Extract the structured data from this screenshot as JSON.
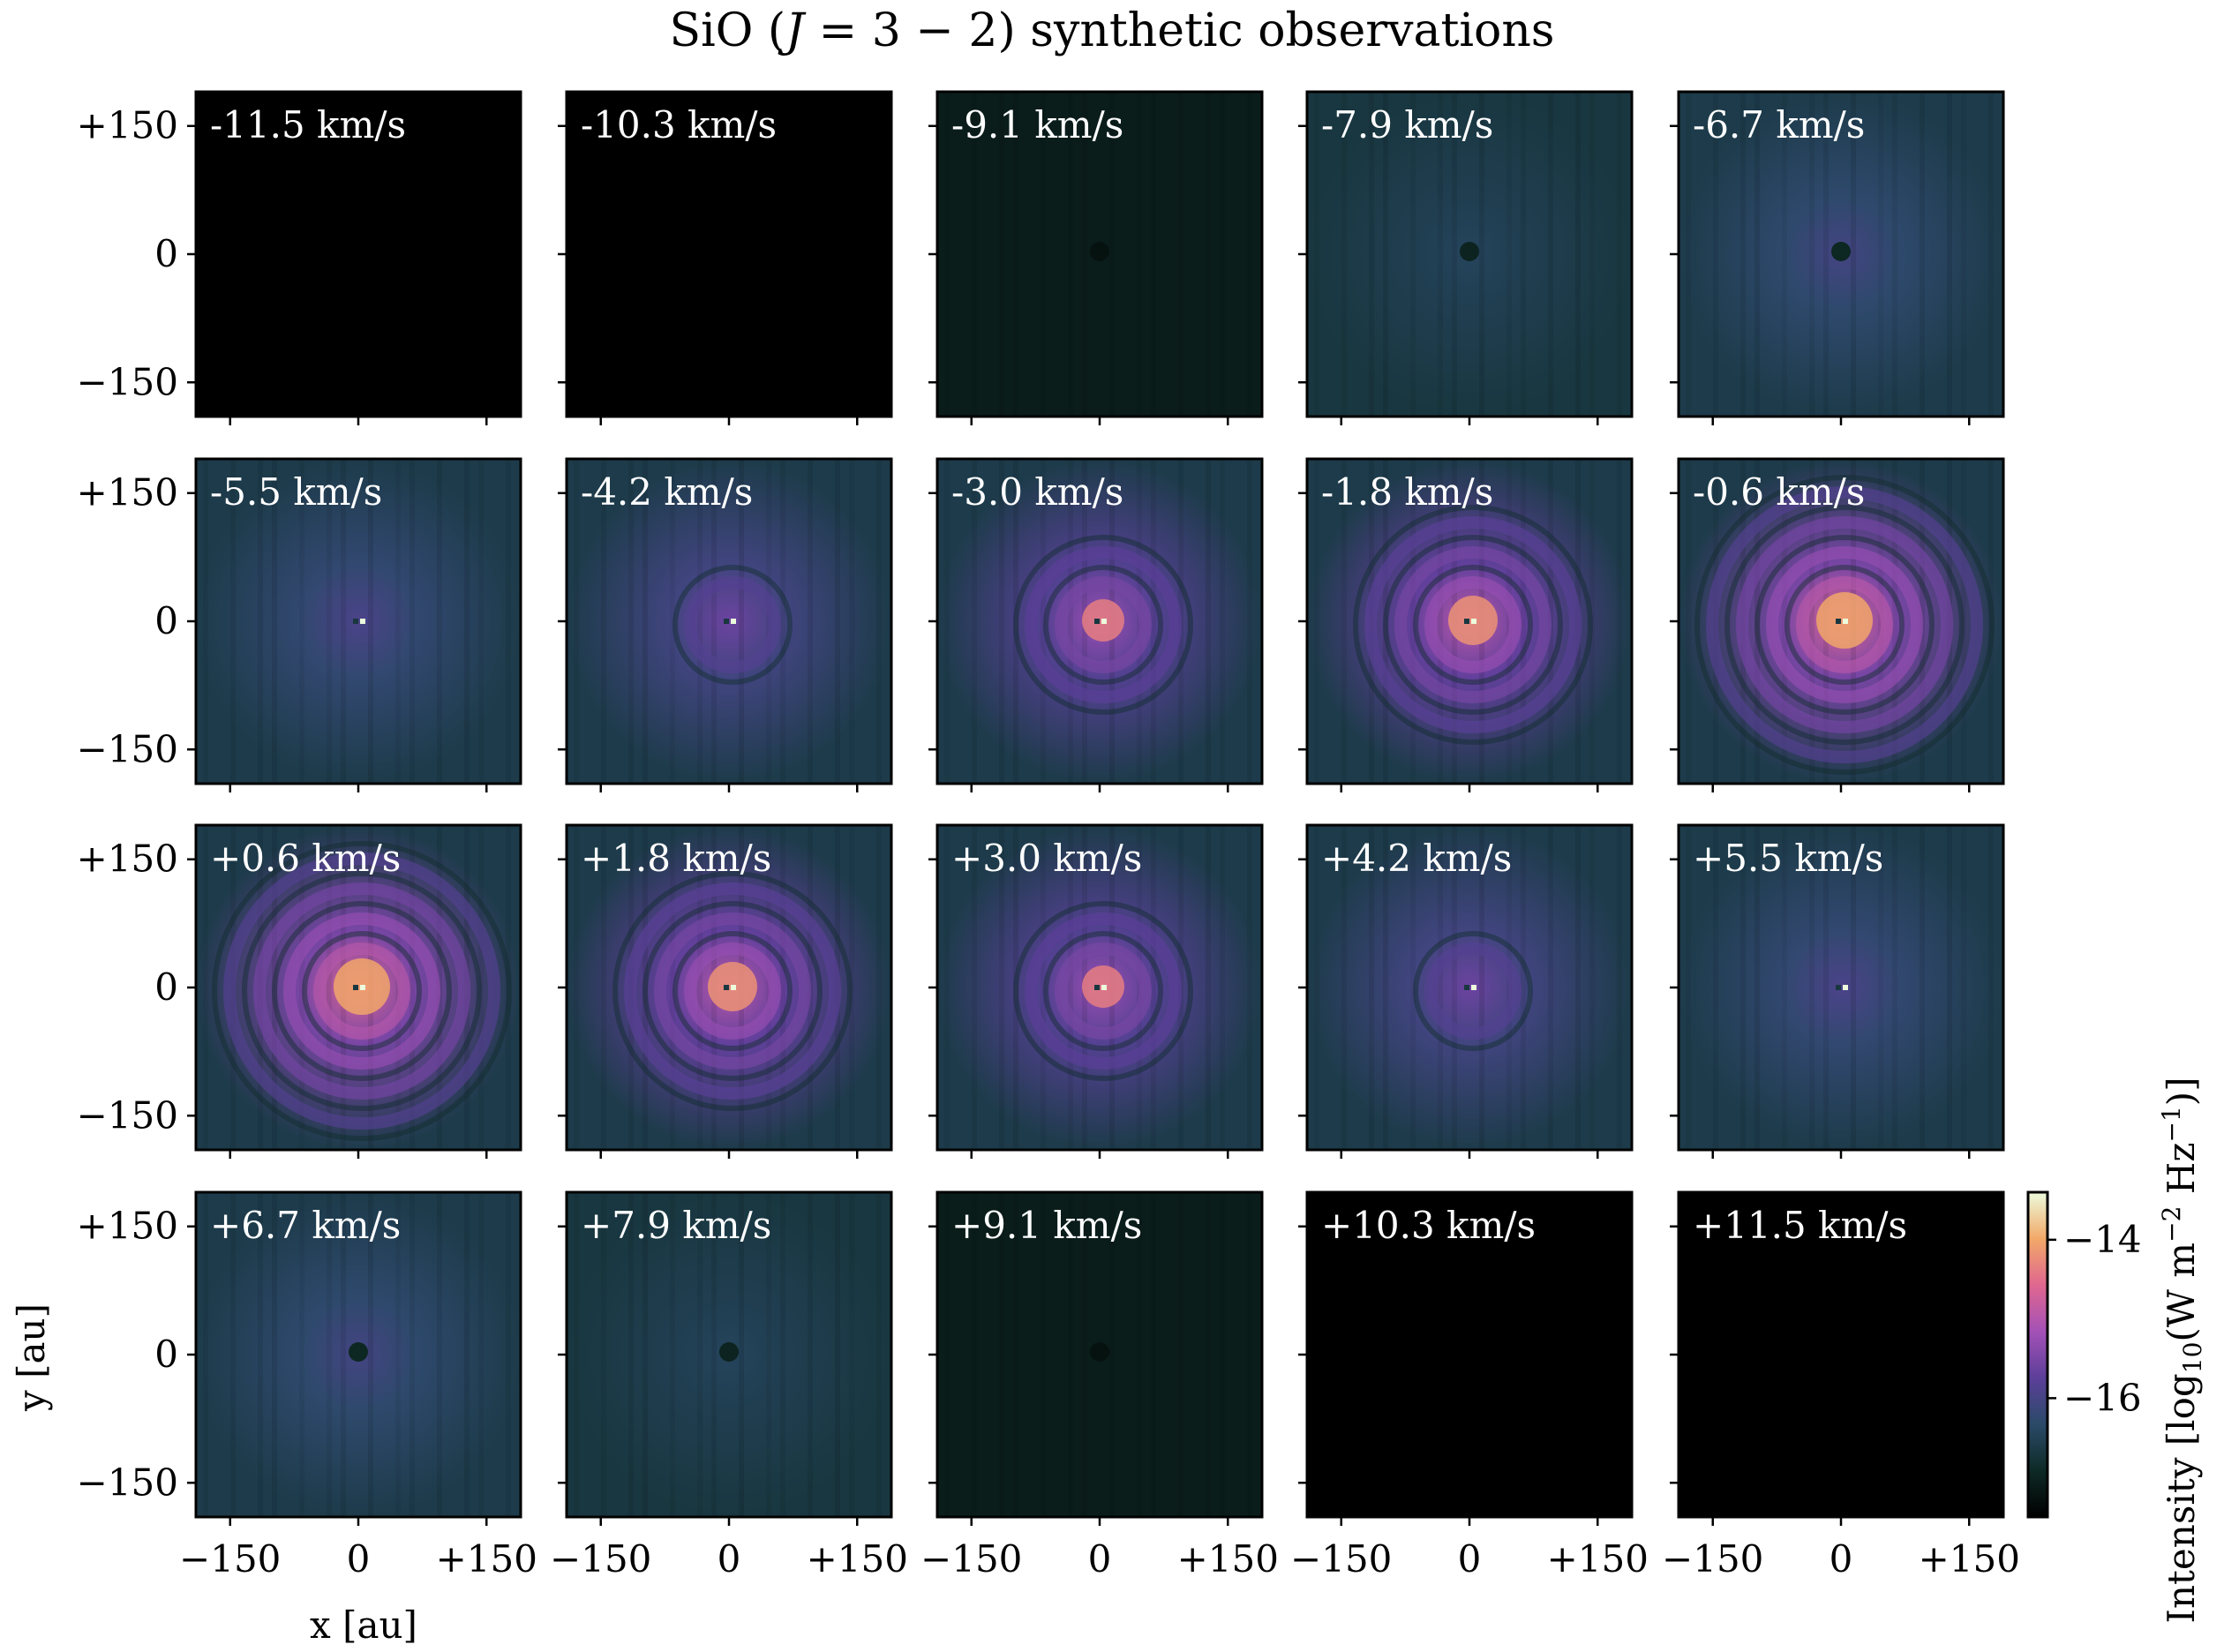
{
  "figure": {
    "title": "SiO (J = 3 − 2) synthetic observations",
    "colormap_stops": [
      "#000000",
      "#0e2a26",
      "#2a4a68",
      "#5c3f9a",
      "#a451b7",
      "#e0678f",
      "#f2a968",
      "#ecfcdc"
    ]
  },
  "chart_data": {
    "type": "heatmap",
    "title": "SiO (J = 3 − 2) synthetic observations",
    "grid": {
      "rows": 4,
      "cols": 5
    },
    "xlabel": "x [au]",
    "ylabel": "y [au]",
    "xlim": [
      -190,
      190
    ],
    "ylim": [
      -190,
      190
    ],
    "x_ticks": [
      -150,
      0,
      150
    ],
    "y_ticks": [
      -150,
      0,
      150
    ],
    "x_tick_labels": [
      "−150",
      "0",
      "+150"
    ],
    "y_tick_labels": [
      "+150",
      "0",
      "−150"
    ],
    "colorbar": {
      "label": "Intensity [log10(W m−2 Hz−1)]",
      "range": [
        -17.5,
        -13.4
      ],
      "ticks": [
        -14,
        -16
      ],
      "tick_labels": [
        "−14",
        "−16"
      ],
      "colormap": "magma-like"
    },
    "panels": [
      {
        "label": "-11.5 km/s",
        "velocity": -11.5,
        "bg_level": 0.0,
        "disk_level": 0.0,
        "peak_level": 0.0,
        "rings": 0
      },
      {
        "label": "-10.3 km/s",
        "velocity": -10.3,
        "bg_level": 0.0,
        "disk_level": 0.0,
        "peak_level": 0.0,
        "rings": 0
      },
      {
        "label": "-9.1 km/s",
        "velocity": -9.1,
        "bg_level": 0.1,
        "disk_level": 0.1,
        "peak_level": 0.05,
        "rings": 0
      },
      {
        "label": "-7.9 km/s",
        "velocity": -7.9,
        "bg_level": 0.2,
        "disk_level": 0.26,
        "peak_level": 0.12,
        "rings": 0
      },
      {
        "label": "-6.7 km/s",
        "velocity": -6.7,
        "bg_level": 0.22,
        "disk_level": 0.36,
        "peak_level": 0.15,
        "rings": 0
      },
      {
        "label": "-5.5 km/s",
        "velocity": -5.5,
        "bg_level": 0.22,
        "disk_level": 0.38,
        "peak_level": 0.8,
        "rings": 0
      },
      {
        "label": "-4.2 km/s",
        "velocity": -4.2,
        "bg_level": 0.22,
        "disk_level": 0.46,
        "peak_level": 0.85,
        "rings": 1
      },
      {
        "label": "-3.0 km/s",
        "velocity": -3.0,
        "bg_level": 0.22,
        "disk_level": 0.55,
        "peak_level": 0.9,
        "rings": 2
      },
      {
        "label": "-1.8 km/s",
        "velocity": -1.8,
        "bg_level": 0.22,
        "disk_level": 0.62,
        "peak_level": 0.95,
        "rings": 3
      },
      {
        "label": "-0.6 km/s",
        "velocity": -0.6,
        "bg_level": 0.22,
        "disk_level": 0.7,
        "peak_level": 1.0,
        "rings": 4
      },
      {
        "label": "+0.6 km/s",
        "velocity": 0.6,
        "bg_level": 0.22,
        "disk_level": 0.7,
        "peak_level": 1.0,
        "rings": 4
      },
      {
        "label": "+1.8 km/s",
        "velocity": 1.8,
        "bg_level": 0.22,
        "disk_level": 0.62,
        "peak_level": 0.95,
        "rings": 3
      },
      {
        "label": "+3.0 km/s",
        "velocity": 3.0,
        "bg_level": 0.22,
        "disk_level": 0.55,
        "peak_level": 0.9,
        "rings": 2
      },
      {
        "label": "+4.2 km/s",
        "velocity": 4.2,
        "bg_level": 0.22,
        "disk_level": 0.46,
        "peak_level": 0.85,
        "rings": 1
      },
      {
        "label": "+5.5 km/s",
        "velocity": 5.5,
        "bg_level": 0.22,
        "disk_level": 0.38,
        "peak_level": 0.8,
        "rings": 0
      },
      {
        "label": "+6.7 km/s",
        "velocity": 6.7,
        "bg_level": 0.22,
        "disk_level": 0.36,
        "peak_level": 0.15,
        "rings": 0
      },
      {
        "label": "+7.9 km/s",
        "velocity": 7.9,
        "bg_level": 0.2,
        "disk_level": 0.26,
        "peak_level": 0.12,
        "rings": 0
      },
      {
        "label": "+9.1 km/s",
        "velocity": 9.1,
        "bg_level": 0.1,
        "disk_level": 0.1,
        "peak_level": 0.05,
        "rings": 0
      },
      {
        "label": "+10.3 km/s",
        "velocity": 10.3,
        "bg_level": 0.0,
        "disk_level": 0.0,
        "peak_level": 0.0,
        "rings": 0
      },
      {
        "label": "+11.5 km/s",
        "velocity": 11.5,
        "bg_level": 0.0,
        "disk_level": 0.0,
        "peak_level": 0.0,
        "rings": 0
      }
    ]
  }
}
